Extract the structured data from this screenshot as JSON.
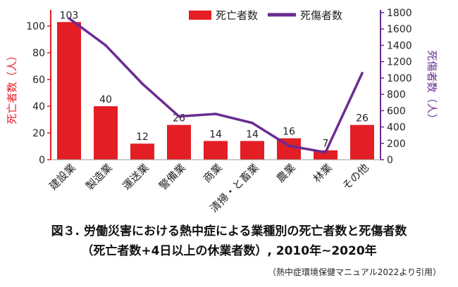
{
  "chart_data": {
    "type": "bar",
    "categories": [
      "建設業",
      "製造業",
      "運送業",
      "警備業",
      "商業",
      "清掃・と畜業",
      "農業",
      "林業",
      "その他"
    ],
    "series": [
      {
        "name": "死亡者数",
        "type": "bar",
        "axis": "left",
        "color": "#e31e24",
        "values": [
          103,
          40,
          12,
          26,
          14,
          14,
          16,
          7,
          26
        ]
      },
      {
        "name": "死傷者数",
        "type": "line",
        "axis": "right",
        "color": "#6a2c91",
        "values": [
          1730,
          1400,
          930,
          530,
          560,
          450,
          170,
          90,
          1060
        ]
      }
    ],
    "ylabel": "死亡者数（人）",
    "ylabel_right": "死傷者数（人）",
    "ylim": [
      0,
      110
    ],
    "ylim_right": [
      0,
      1800
    ],
    "yticks": [
      0,
      20,
      40,
      60,
      80,
      100
    ],
    "yticks_right": [
      0,
      200,
      400,
      600,
      800,
      1000,
      1200,
      1400,
      1600,
      1800
    ],
    "legend_position": "top",
    "grid": false,
    "left_axis_color": "#e31e24",
    "right_axis_color": "#6a2c91"
  },
  "caption": {
    "line1": "図３. 労働災害における熱中症による業種別の死亡者数と死傷者数",
    "line2": "（死亡者数+4日以上の休業者数）, 2010年~2020年"
  },
  "source": "（熱中症環境保健マニュアル2022より引用）"
}
